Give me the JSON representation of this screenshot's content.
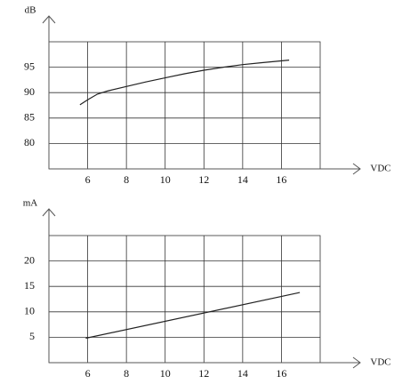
{
  "chart_data": [
    {
      "type": "line",
      "ylabel": "dB",
      "xlabel": "VDC",
      "xlim": [
        4,
        18
      ],
      "xticks": [
        6,
        8,
        10,
        12,
        14,
        16
      ],
      "ylim": [
        75,
        100
      ],
      "yticks": [
        80,
        85,
        90,
        95
      ],
      "grid": true,
      "color": "#222",
      "x": [
        5.6,
        6,
        6.5,
        7,
        8,
        9,
        10,
        11,
        12,
        13,
        14,
        15,
        16.4
      ],
      "values": [
        87.6,
        88.6,
        89.7,
        90.3,
        91.2,
        92.1,
        92.9,
        93.7,
        94.4,
        95.0,
        95.5,
        95.9,
        96.4
      ]
    },
    {
      "type": "line",
      "ylabel": "mA",
      "xlabel": "VDC",
      "xlim": [
        4,
        18
      ],
      "xticks": [
        6,
        8,
        10,
        12,
        14,
        16
      ],
      "ylim": [
        0,
        25
      ],
      "yticks": [
        5,
        10,
        15,
        20
      ],
      "grid": true,
      "color": "#222",
      "x": [
        5.9,
        16.95
      ],
      "values": [
        4.8,
        13.8
      ]
    }
  ]
}
